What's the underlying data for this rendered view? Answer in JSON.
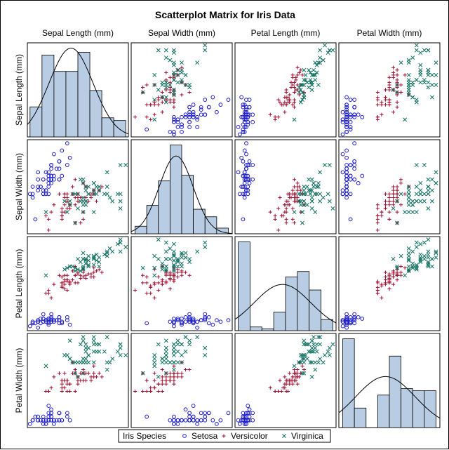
{
  "chart_data": {
    "type": "scatter",
    "title": "Scatterplot Matrix for Iris Data",
    "variables": [
      "Sepal Length (mm)",
      "Sepal Width (mm)",
      "Petal Length (mm)",
      "Petal Width (mm)"
    ],
    "ranges": [
      [
        42,
        80
      ],
      [
        19,
        45
      ],
      [
        8,
        71
      ],
      [
        0,
        26
      ]
    ],
    "legend": {
      "title": "Iris Species",
      "position": "bottom",
      "entries": [
        {
          "name": "Setosa",
          "marker": "circle",
          "color": "#1f1fcc"
        },
        {
          "name": "Versicolor",
          "marker": "plus",
          "color": "#a01030"
        },
        {
          "name": "Virginica",
          "marker": "x",
          "color": "#107060"
        }
      ]
    },
    "diagonal": "histogram with density curve",
    "histogram_fill": "#b8cce4",
    "species": [
      {
        "name": "Setosa",
        "points": [
          [
            51,
            35,
            14,
            2
          ],
          [
            49,
            30,
            14,
            2
          ],
          [
            47,
            32,
            13,
            2
          ],
          [
            46,
            31,
            15,
            2
          ],
          [
            50,
            36,
            14,
            2
          ],
          [
            54,
            39,
            17,
            4
          ],
          [
            46,
            34,
            14,
            3
          ],
          [
            50,
            34,
            15,
            2
          ],
          [
            44,
            29,
            14,
            2
          ],
          [
            49,
            31,
            15,
            1
          ],
          [
            54,
            37,
            15,
            2
          ],
          [
            48,
            34,
            16,
            2
          ],
          [
            48,
            30,
            14,
            1
          ],
          [
            43,
            30,
            11,
            1
          ],
          [
            58,
            40,
            12,
            2
          ],
          [
            57,
            44,
            15,
            4
          ],
          [
            54,
            39,
            13,
            4
          ],
          [
            51,
            35,
            14,
            3
          ],
          [
            57,
            38,
            17,
            3
          ],
          [
            51,
            38,
            15,
            3
          ],
          [
            54,
            34,
            17,
            2
          ],
          [
            51,
            37,
            15,
            4
          ],
          [
            46,
            36,
            10,
            2
          ],
          [
            51,
            33,
            17,
            5
          ],
          [
            48,
            34,
            19,
            2
          ],
          [
            50,
            30,
            16,
            2
          ],
          [
            50,
            34,
            16,
            4
          ],
          [
            52,
            35,
            15,
            2
          ],
          [
            52,
            34,
            14,
            2
          ],
          [
            47,
            32,
            16,
            2
          ],
          [
            48,
            31,
            16,
            2
          ],
          [
            54,
            34,
            15,
            4
          ],
          [
            52,
            41,
            15,
            1
          ],
          [
            55,
            42,
            14,
            2
          ],
          [
            49,
            31,
            15,
            2
          ],
          [
            50,
            32,
            12,
            2
          ],
          [
            55,
            35,
            13,
            2
          ],
          [
            49,
            36,
            14,
            1
          ],
          [
            44,
            30,
            13,
            2
          ],
          [
            51,
            34,
            15,
            2
          ],
          [
            50,
            35,
            13,
            3
          ],
          [
            45,
            23,
            13,
            3
          ],
          [
            44,
            32,
            13,
            2
          ],
          [
            50,
            35,
            16,
            6
          ],
          [
            51,
            38,
            19,
            4
          ],
          [
            48,
            30,
            14,
            3
          ],
          [
            51,
            38,
            16,
            2
          ],
          [
            46,
            32,
            14,
            2
          ],
          [
            53,
            37,
            15,
            2
          ],
          [
            50,
            33,
            14,
            2
          ]
        ]
      },
      {
        "name": "Versicolor",
        "points": [
          [
            70,
            32,
            47,
            14
          ],
          [
            64,
            32,
            45,
            15
          ],
          [
            69,
            31,
            49,
            15
          ],
          [
            55,
            23,
            40,
            13
          ],
          [
            65,
            28,
            46,
            15
          ],
          [
            57,
            28,
            45,
            13
          ],
          [
            63,
            33,
            47,
            16
          ],
          [
            49,
            24,
            33,
            10
          ],
          [
            66,
            29,
            46,
            13
          ],
          [
            52,
            27,
            39,
            14
          ],
          [
            50,
            20,
            35,
            10
          ],
          [
            59,
            30,
            42,
            15
          ],
          [
            60,
            22,
            40,
            10
          ],
          [
            61,
            29,
            47,
            14
          ],
          [
            56,
            29,
            36,
            13
          ],
          [
            67,
            31,
            44,
            14
          ],
          [
            56,
            30,
            45,
            15
          ],
          [
            58,
            27,
            41,
            10
          ],
          [
            62,
            22,
            45,
            15
          ],
          [
            56,
            25,
            39,
            11
          ],
          [
            59,
            32,
            48,
            18
          ],
          [
            61,
            28,
            40,
            13
          ],
          [
            63,
            25,
            49,
            15
          ],
          [
            61,
            28,
            47,
            12
          ],
          [
            64,
            29,
            43,
            13
          ],
          [
            66,
            30,
            44,
            14
          ],
          [
            68,
            28,
            48,
            14
          ],
          [
            67,
            30,
            50,
            17
          ],
          [
            60,
            29,
            45,
            15
          ],
          [
            57,
            26,
            35,
            10
          ],
          [
            55,
            24,
            38,
            11
          ],
          [
            55,
            24,
            37,
            10
          ],
          [
            58,
            27,
            39,
            12
          ],
          [
            60,
            27,
            51,
            16
          ],
          [
            54,
            30,
            45,
            15
          ],
          [
            60,
            34,
            45,
            16
          ],
          [
            67,
            31,
            47,
            15
          ],
          [
            63,
            23,
            44,
            13
          ],
          [
            56,
            30,
            41,
            13
          ],
          [
            55,
            25,
            40,
            13
          ],
          [
            55,
            26,
            44,
            12
          ],
          [
            61,
            30,
            46,
            14
          ],
          [
            58,
            26,
            40,
            12
          ],
          [
            50,
            23,
            33,
            10
          ],
          [
            56,
            27,
            42,
            13
          ],
          [
            57,
            30,
            42,
            12
          ],
          [
            57,
            29,
            42,
            13
          ],
          [
            62,
            29,
            43,
            13
          ],
          [
            51,
            25,
            30,
            11
          ],
          [
            57,
            28,
            41,
            13
          ]
        ]
      },
      {
        "name": "Virginica",
        "points": [
          [
            63,
            33,
            60,
            25
          ],
          [
            58,
            27,
            51,
            19
          ],
          [
            71,
            30,
            59,
            21
          ],
          [
            63,
            29,
            56,
            18
          ],
          [
            65,
            30,
            58,
            22
          ],
          [
            76,
            30,
            66,
            21
          ],
          [
            49,
            25,
            45,
            17
          ],
          [
            73,
            29,
            63,
            18
          ],
          [
            67,
            25,
            58,
            18
          ],
          [
            72,
            36,
            61,
            25
          ],
          [
            65,
            32,
            51,
            20
          ],
          [
            64,
            27,
            53,
            19
          ],
          [
            68,
            30,
            55,
            21
          ],
          [
            57,
            25,
            50,
            20
          ],
          [
            58,
            28,
            51,
            24
          ],
          [
            64,
            32,
            53,
            23
          ],
          [
            65,
            30,
            55,
            18
          ],
          [
            77,
            38,
            67,
            22
          ],
          [
            77,
            26,
            69,
            23
          ],
          [
            60,
            22,
            50,
            15
          ],
          [
            69,
            32,
            57,
            23
          ],
          [
            56,
            28,
            49,
            20
          ],
          [
            77,
            28,
            67,
            20
          ],
          [
            63,
            27,
            49,
            18
          ],
          [
            67,
            33,
            57,
            21
          ],
          [
            72,
            32,
            60,
            18
          ],
          [
            62,
            28,
            48,
            18
          ],
          [
            61,
            30,
            49,
            18
          ],
          [
            64,
            28,
            56,
            21
          ],
          [
            72,
            30,
            58,
            16
          ],
          [
            74,
            28,
            61,
            19
          ],
          [
            79,
            38,
            64,
            20
          ],
          [
            64,
            28,
            56,
            22
          ],
          [
            63,
            28,
            51,
            15
          ],
          [
            61,
            26,
            56,
            14
          ],
          [
            77,
            30,
            61,
            23
          ],
          [
            63,
            34,
            56,
            24
          ],
          [
            64,
            31,
            55,
            18
          ],
          [
            60,
            30,
            48,
            18
          ],
          [
            69,
            31,
            54,
            21
          ],
          [
            67,
            31,
            56,
            24
          ],
          [
            69,
            31,
            51,
            23
          ],
          [
            58,
            27,
            51,
            19
          ],
          [
            68,
            32,
            59,
            23
          ],
          [
            67,
            33,
            57,
            25
          ],
          [
            67,
            30,
            52,
            23
          ],
          [
            63,
            25,
            50,
            19
          ],
          [
            65,
            30,
            52,
            20
          ],
          [
            62,
            34,
            54,
            23
          ],
          [
            59,
            30,
            51,
            18
          ]
        ]
      }
    ]
  }
}
